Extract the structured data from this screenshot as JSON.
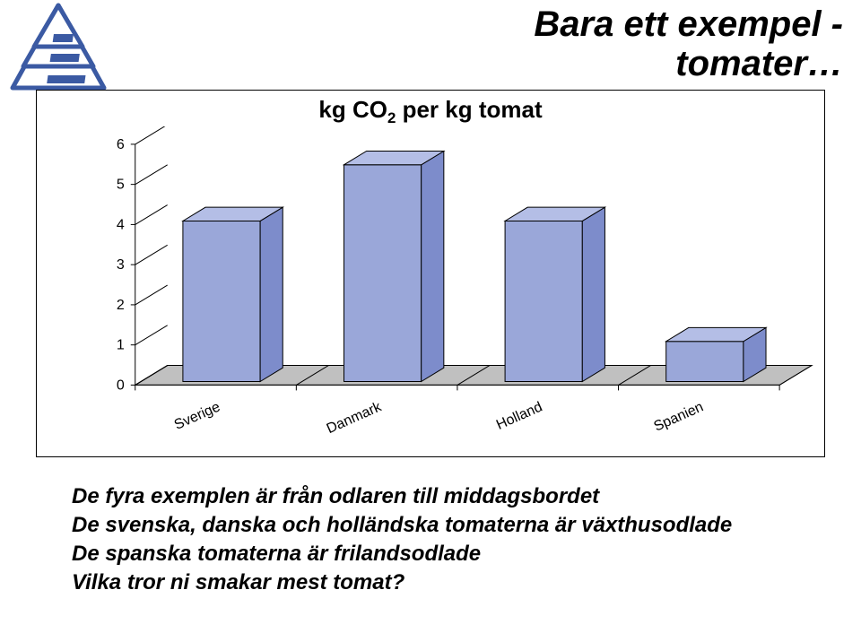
{
  "title": {
    "line1": "Bara ett exempel -",
    "line2": "tomater…",
    "fontsize": 40,
    "fontweight": "bold",
    "fontstyle": "italic",
    "color": "#000000"
  },
  "logo": {
    "stroke_color": "#3b5aa3",
    "fill_color": "#ffffff",
    "accent_color": "#3b5aa3"
  },
  "chart": {
    "title": "kg CO2 per kg tomat",
    "title_fontsize": 26,
    "type": "bar-3d",
    "categories": [
      "Sverige",
      "Danmark",
      "Holland",
      "Spanien"
    ],
    "values": [
      4.0,
      5.4,
      4.0,
      1.0
    ],
    "ylim": [
      0,
      6
    ],
    "yticks": [
      0,
      1,
      2,
      3,
      4,
      5,
      6
    ],
    "bar_fill": "#9aa7d9",
    "bar_top_fill": "#b4bee6",
    "bar_side_fill": "#7d8ccb",
    "bar_stroke": "#000000",
    "floor_fill": "#c0c0c0",
    "grid_color": "#000000",
    "background_color": "#ffffff",
    "axis_label_fontsize": 16,
    "category_fontsize": 16,
    "category_rotation": -24
  },
  "body": {
    "fontsize": 24,
    "fontweight": "bold",
    "fontstyle": "italic",
    "lines": [
      "De fyra exemplen är från odlaren till middagsbordet",
      "De svenska, danska och holländska tomaterna är växthusodlade",
      "De spanska tomaterna är frilandsodlade",
      "Vilka tror ni smakar mest tomat?"
    ]
  }
}
